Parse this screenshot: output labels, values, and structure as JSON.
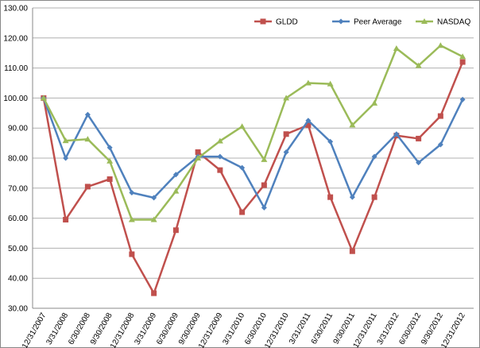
{
  "chart_data": {
    "type": "line",
    "categories": [
      "12/31/2007",
      "3/31/2008",
      "6/30/2008",
      "9/30/2008",
      "12/31/2008",
      "3/31/2009",
      "6/30/2009",
      "9/30/2009",
      "12/31/2009",
      "3/31/2010",
      "6/30/2010",
      "12/31/2010",
      "3/31/2011",
      "6/30/2011",
      "9/30/2011",
      "12/31/2011",
      "3/31/2012",
      "6/30/2012",
      "9/30/2012",
      "12/31/2012"
    ],
    "series": [
      {
        "name": "GLDD",
        "color": "#c0504d",
        "marker": "square",
        "values": [
          100,
          59.5,
          70.5,
          73,
          48,
          35,
          56,
          82,
          76,
          62,
          71,
          88,
          91,
          67,
          49,
          67,
          87.5,
          86.5,
          94,
          112
        ]
      },
      {
        "name": "Peer Average",
        "color": "#4f81bd",
        "marker": "diamond",
        "values": [
          100,
          80,
          94.5,
          83.5,
          68.5,
          66.8,
          74.5,
          80.5,
          80.5,
          76.8,
          63.5,
          82,
          92.5,
          85.5,
          67,
          80.5,
          88,
          78.5,
          84.5,
          99.5
        ]
      },
      {
        "name": "NASDAQ",
        "color": "#9bbb59",
        "marker": "triangle",
        "values": [
          100,
          85.8,
          86.3,
          79,
          59.5,
          59.5,
          69,
          80,
          85.7,
          90.5,
          79.5,
          100,
          105,
          104.7,
          91,
          98.3,
          116.5,
          110.8,
          117.5,
          113.8
        ]
      }
    ],
    "ylim": [
      30,
      130
    ],
    "yticks": [
      {
        "value": 30,
        "label": "30.00"
      },
      {
        "value": 40,
        "label": "40.00"
      },
      {
        "value": 50,
        "label": "50.00"
      },
      {
        "value": 60,
        "label": "60.00"
      },
      {
        "value": 70,
        "label": "70.00"
      },
      {
        "value": 80,
        "label": "80.00"
      },
      {
        "value": 90,
        "label": "90.00"
      },
      {
        "value": 100,
        "label": "100.00"
      },
      {
        "value": 110,
        "label": "110.00"
      },
      {
        "value": 120,
        "label": "120.00"
      },
      {
        "value": 130,
        "label": "130.00"
      }
    ],
    "grid": true,
    "legend": "top-right"
  }
}
